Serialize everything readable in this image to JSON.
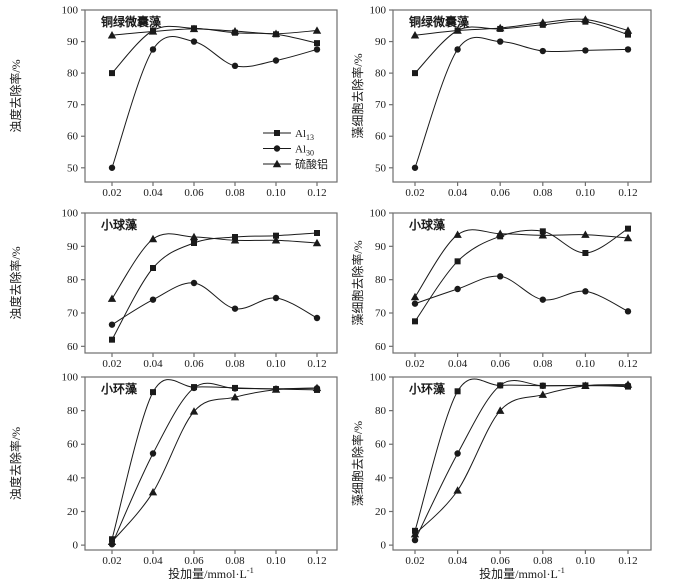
{
  "figure": {
    "background": "#ffffff",
    "ink_color": "#1a1a1a",
    "frame_color": "#6f6f6f"
  },
  "axes": {
    "x_title_main": "投加量/mmol·L",
    "x_title_sup": "-1",
    "x_tick_labels": [
      "0.02",
      "0.04",
      "0.06",
      "0.08",
      "0.10",
      "0.12"
    ],
    "x_values": [
      0.02,
      0.04,
      0.06,
      0.08,
      0.1,
      0.12
    ]
  },
  "legend": {
    "entries": [
      {
        "series": "Al13",
        "label_main": "Al",
        "label_sub": "13",
        "marker": "square"
      },
      {
        "series": "Al30",
        "label_main": "Al",
        "label_sub": "30",
        "marker": "circle"
      },
      {
        "series": "sulfate",
        "label_main": "硫酸铝",
        "label_sub": "",
        "marker": "triangle"
      }
    ]
  },
  "chart_data": [
    {
      "id": "microcystis-turbidity",
      "type": "scatter",
      "row": 0,
      "col": 0,
      "show_legend": true,
      "title": "铜绿微囊藻",
      "ylabel": "浊度去除率/%",
      "x": [
        0.02,
        0.04,
        0.06,
        0.08,
        0.1,
        0.12
      ],
      "yticks": [
        50,
        60,
        70,
        80,
        90,
        100
      ],
      "ylim": [
        45.5,
        100
      ],
      "series": [
        {
          "name": "Al13",
          "marker": "square",
          "values": [
            80,
            93.5,
            94.2,
            92.8,
            92.3,
            89.5
          ]
        },
        {
          "name": "Al30",
          "marker": "circle",
          "values": [
            50,
            87.5,
            90,
            82.3,
            84,
            87.5
          ]
        },
        {
          "name": "sulfate",
          "marker": "triangle",
          "values": [
            92,
            93.2,
            94,
            93.3,
            92.5,
            93.5
          ]
        }
      ]
    },
    {
      "id": "microcystis-cells",
      "type": "scatter",
      "row": 0,
      "col": 1,
      "show_legend": false,
      "title": "铜绿微囊藻",
      "ylabel": "藻细胞去除率/%",
      "x": [
        0.02,
        0.04,
        0.06,
        0.08,
        0.1,
        0.12
      ],
      "yticks": [
        50,
        60,
        70,
        80,
        90,
        100
      ],
      "ylim": [
        45.5,
        100
      ],
      "series": [
        {
          "name": "Al13",
          "marker": "square",
          "values": [
            80,
            93.5,
            94,
            95.3,
            96.3,
            92.2
          ]
        },
        {
          "name": "Al30",
          "marker": "circle",
          "values": [
            50,
            87.5,
            90,
            87,
            87.2,
            87.5
          ]
        },
        {
          "name": "sulfate",
          "marker": "triangle",
          "values": [
            92,
            93.5,
            94.3,
            96,
            97,
            93.5
          ]
        }
      ]
    },
    {
      "id": "chlorella-turbidity",
      "type": "scatter",
      "row": 1,
      "col": 0,
      "show_legend": false,
      "title": "小球藻",
      "ylabel": "浊度去除率/%",
      "x": [
        0.02,
        0.04,
        0.06,
        0.08,
        0.1,
        0.12
      ],
      "yticks": [
        60,
        70,
        80,
        90,
        100
      ],
      "ylim": [
        58,
        100
      ],
      "series": [
        {
          "name": "Al13",
          "marker": "square",
          "values": [
            62,
            83.5,
            91,
            92.8,
            93.2,
            94
          ]
        },
        {
          "name": "Al30",
          "marker": "circle",
          "values": [
            66.5,
            74,
            79,
            71.3,
            74.5,
            68.5
          ]
        },
        {
          "name": "sulfate",
          "marker": "triangle",
          "values": [
            74.3,
            92.2,
            92.8,
            91.8,
            91.8,
            91
          ]
        }
      ]
    },
    {
      "id": "chlorella-cells",
      "type": "scatter",
      "row": 1,
      "col": 1,
      "show_legend": false,
      "title": "小球藻",
      "ylabel": "藻细胞去除率/%",
      "x": [
        0.02,
        0.04,
        0.06,
        0.08,
        0.1,
        0.12
      ],
      "yticks": [
        60,
        70,
        80,
        90,
        100
      ],
      "ylim": [
        58,
        100
      ],
      "series": [
        {
          "name": "Al13",
          "marker": "square",
          "values": [
            67.5,
            85.5,
            93,
            94.5,
            88,
            95.3
          ]
        },
        {
          "name": "Al30",
          "marker": "circle",
          "values": [
            72.8,
            77.2,
            81,
            74,
            76.5,
            70.5
          ]
        },
        {
          "name": "sulfate",
          "marker": "triangle",
          "values": [
            74.8,
            93.5,
            93.8,
            93.3,
            93.5,
            92.5
          ]
        }
      ]
    },
    {
      "id": "cyclotella-turbidity",
      "type": "scatter",
      "row": 2,
      "col": 0,
      "show_legend": false,
      "title": "小环藻",
      "ylabel": "浊度去除率/%",
      "x": [
        0.02,
        0.04,
        0.06,
        0.08,
        0.1,
        0.12
      ],
      "yticks": [
        0,
        20,
        40,
        60,
        80,
        100
      ],
      "ylim": [
        -2.9,
        100
      ],
      "series": [
        {
          "name": "Al13",
          "marker": "square",
          "values": [
            3.5,
            91,
            94,
            93.5,
            92.8,
            92.3
          ]
        },
        {
          "name": "Al30",
          "marker": "circle",
          "values": [
            0.5,
            54.5,
            93.5,
            93.2,
            93,
            93.3
          ]
        },
        {
          "name": "sulfate",
          "marker": "triangle",
          "values": [
            2,
            31.5,
            79.5,
            88,
            92.5,
            93.5
          ]
        }
      ]
    },
    {
      "id": "cyclotella-cells",
      "type": "scatter",
      "row": 2,
      "col": 1,
      "show_legend": false,
      "title": "小环藻",
      "ylabel": "藻细胞去除率/%",
      "x": [
        0.02,
        0.04,
        0.06,
        0.08,
        0.1,
        0.12
      ],
      "yticks": [
        0,
        20,
        40,
        60,
        80,
        100
      ],
      "ylim": [
        -2.9,
        100
      ],
      "series": [
        {
          "name": "Al13",
          "marker": "square",
          "values": [
            8.5,
            91.5,
            95,
            94.8,
            95,
            94.3
          ]
        },
        {
          "name": "Al30",
          "marker": "circle",
          "values": [
            3,
            54.5,
            95,
            94.8,
            94.8,
            95
          ]
        },
        {
          "name": "sulfate",
          "marker": "triangle",
          "values": [
            6.5,
            32.5,
            80,
            89.5,
            94.8,
            95.5
          ]
        }
      ]
    }
  ]
}
